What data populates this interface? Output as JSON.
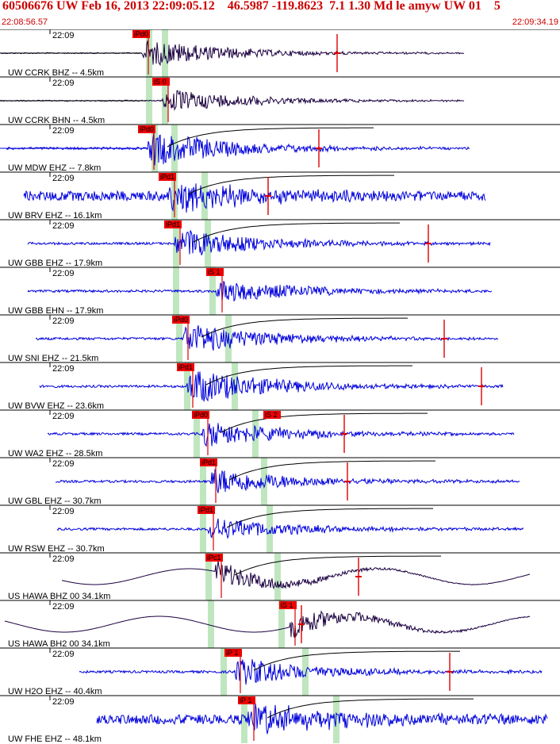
{
  "header": {
    "title": "60506676 UW Feb 16, 2013 22:09:05.12    46.5987 -119.8623  7.1 1.30 Md le amyw UW 01    5",
    "start_time": "22:08:56.57",
    "end_time": "22:09:34.19"
  },
  "colors": {
    "title": "#cc0000",
    "trace_vertical": "#0000dd",
    "trace_dark": "#1a0040",
    "pick_box": "#ee0000",
    "pick_band": "#bfe6bf",
    "coda": "#000000",
    "arrival_mark": "#dd0000",
    "separator": "#000000"
  },
  "panels": [
    {
      "label": "UW CCRK BHZ -- 4.5km",
      "time": "22:09",
      "pick": "iPd0",
      "style": "dark",
      "amp": 0.7
    },
    {
      "label": "UW CCRK BHN -- 4.5km",
      "time": "22:09",
      "pick": "iS 0",
      "style": "dark",
      "amp": 0.6
    },
    {
      "label": "UW MDW EHZ -- 7.8km",
      "time": "22:09",
      "pick": "iPd0",
      "style": "blue",
      "amp": 0.9
    },
    {
      "label": "UW BRV EHZ -- 16.1km",
      "time": "22:09",
      "pick": "iPd1",
      "style": "blue",
      "amp": 0.8
    },
    {
      "label": "UW GBB EHZ -- 17.9km",
      "time": "22:09",
      "pick": "iPd1",
      "style": "blue",
      "amp": 0.8
    },
    {
      "label": "UW GBB EHN -- 17.9km",
      "time": "22:09",
      "pick": "iS 1",
      "style": "blue",
      "amp": 0.6
    },
    {
      "label": "UW SNI EHZ -- 21.5km",
      "time": "22:09",
      "pick": "iPd0",
      "style": "blue",
      "amp": 0.8
    },
    {
      "label": "UW BVW EHZ -- 23.6km",
      "time": "22:09",
      "pick": "iPd1",
      "style": "blue",
      "amp": 0.9
    },
    {
      "label": "UW WA2 EHZ -- 28.5km",
      "time": "22:09",
      "pick": "iPd0",
      "pick2": "iS 2",
      "style": "blue",
      "amp": 0.7
    },
    {
      "label": "UW GBL EHZ -- 30.7km",
      "time": "22:09",
      "pick": "iPd1",
      "style": "blue",
      "amp": 0.7
    },
    {
      "label": "UW RSW EHZ -- 30.7km",
      "time": "22:09",
      "pick": "iPd1",
      "style": "blue",
      "amp": 0.6
    },
    {
      "label": "US HAWA BHZ 00 34.1km",
      "time": "22:09",
      "pick": "iPc1",
      "style": "dark",
      "amp": 0.8
    },
    {
      "label": "US HAWA BH2 00 34.1km",
      "time": "22:09",
      "pick": "iS 1",
      "style": "dark",
      "amp": 0.8
    },
    {
      "label": "UW H2O EHZ -- 40.4km",
      "time": "22:09",
      "pick": "iP 1",
      "style": "blue",
      "amp": 0.7
    },
    {
      "label": "UW FHE EHZ -- 48.1km",
      "time": "22:09",
      "pick": "iP 1",
      "style": "blue",
      "amp": 0.8
    }
  ]
}
